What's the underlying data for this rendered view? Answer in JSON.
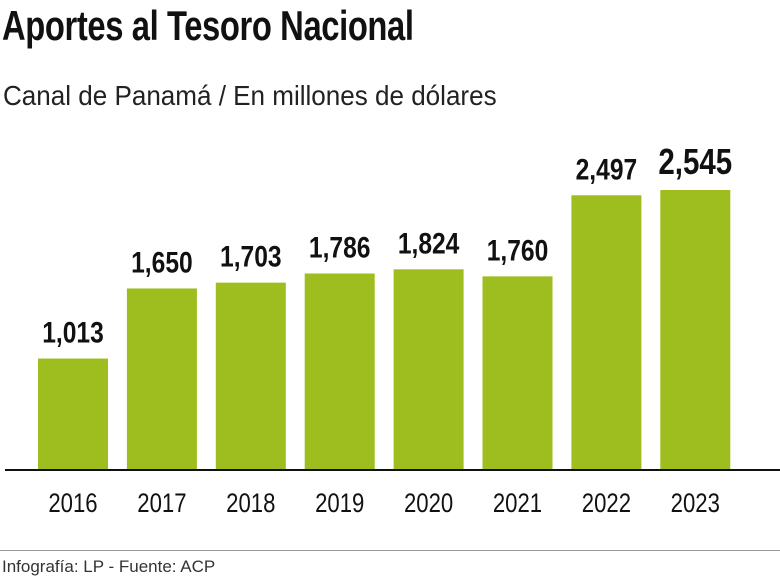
{
  "header": {
    "title": "Aportes al Tesoro Nacional",
    "subtitle": "Canal de Panamá / En millones de dólares"
  },
  "footer": {
    "credit": "Infografía: LP - Fuente: ACP"
  },
  "chart_data": {
    "type": "bar",
    "title": "Aportes al Tesoro Nacional",
    "subtitle": "Canal de Panamá / En millones de dólares",
    "categories": [
      "2016",
      "2017",
      "2018",
      "2019",
      "2020",
      "2021",
      "2022",
      "2023"
    ],
    "values": [
      1013,
      1650,
      1703,
      1786,
      1824,
      1760,
      2497,
      2545
    ],
    "data_labels": [
      "1,013",
      "1,650",
      "1,703",
      "1,786",
      "1,824",
      "1,760",
      "2,497",
      "2,545"
    ],
    "bar_color": "#9dbe1e",
    "grid": false,
    "legend": "none",
    "ylim": [
      0,
      2545
    ]
  }
}
